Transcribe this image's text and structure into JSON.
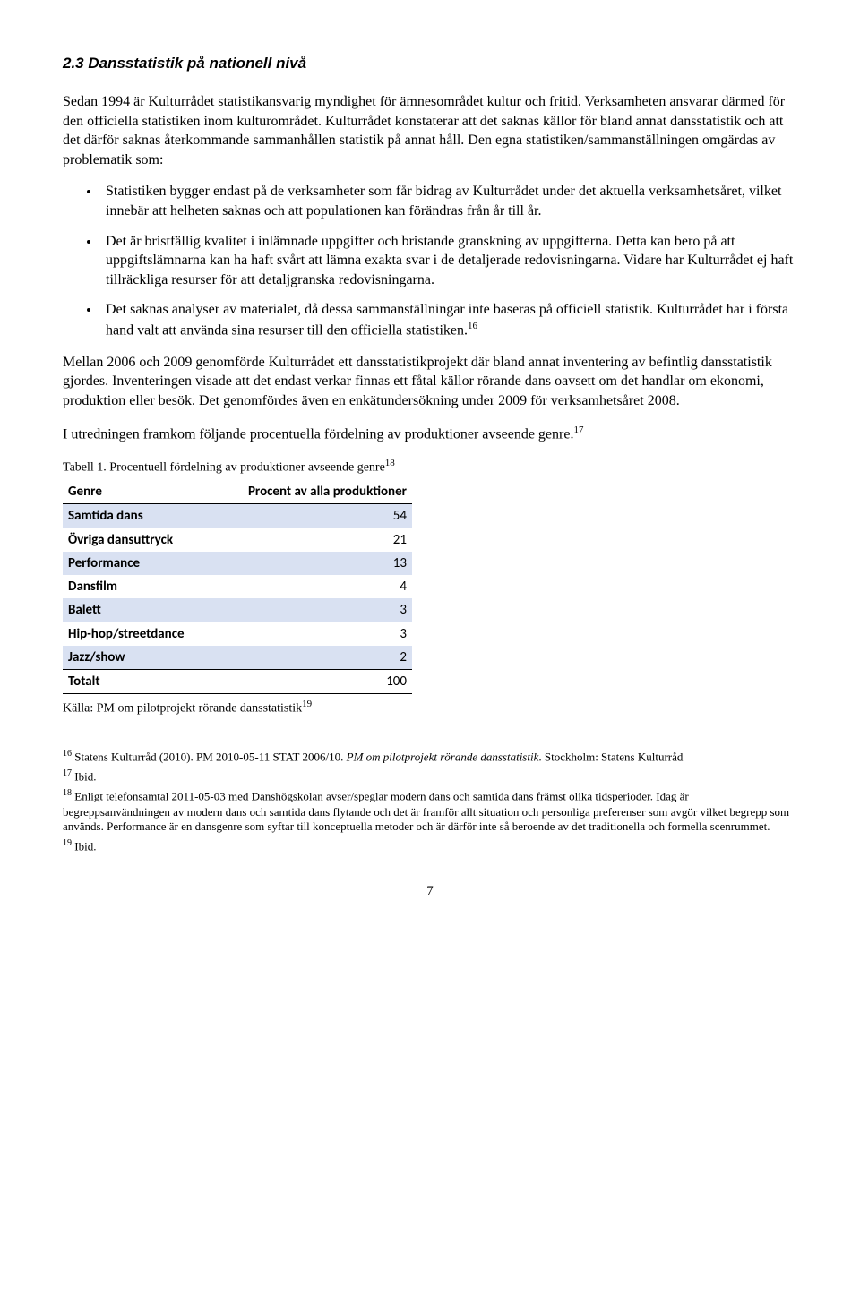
{
  "heading": "2.3 Dansstatistik på nationell nivå",
  "para1": "Sedan 1994 är Kulturrådet statistikansvarig myndighet för ämnesområdet kultur och fritid. Verksamheten ansvarar därmed för den officiella statistiken inom kulturområdet. Kulturrådet konstaterar att det saknas källor för bland annat dansstatistik och att det därför saknas återkommande sammanhållen statistik på annat håll. Den egna statistiken/sammanställningen omgärdas av problematik som:",
  "bullets": [
    "Statistiken bygger endast på de verksamheter som får bidrag av Kulturrådet under det aktuella verksamhetsåret, vilket innebär att helheten saknas och att populationen kan förändras från år till år.",
    "Det är bristfällig kvalitet i inlämnade uppgifter och bristande granskning av uppgifterna. Detta kan bero på att uppgiftslämnarna kan ha haft svårt att lämna exakta svar i de detaljerade redovisningarna. Vidare har Kulturrådet ej haft tillräckliga resurser för att detaljgranska redovisningarna.",
    "Det saknas analyser av materialet, då dessa sammanställningar inte baseras på officiell statistik. Kulturrådet har i första hand valt att använda sina resurser till den officiella statistiken."
  ],
  "bullet3_sup": "16",
  "para2": "Mellan 2006 och 2009 genomförde Kulturrådet ett dansstatistikprojekt där bland annat inventering av befintlig dansstatistik gjordes. Inventeringen visade att det endast verkar finnas ett fåtal källor rörande dans oavsett om det handlar om ekonomi, produktion eller besök. Det genomfördes även en enkätundersökning under 2009 för verksamhetsåret 2008.",
  "para3": "I utredningen framkom följande procentuella fördelning av produktioner avseende genre.",
  "para3_sup": "17",
  "table_caption": "Tabell 1. Procentuell fördelning av produktioner avseende genre",
  "table_caption_sup": "18",
  "table": {
    "col1": "Genre",
    "col2": "Procent av alla produktioner",
    "rows": [
      {
        "label": "Samtida dans",
        "value": "54",
        "band": true
      },
      {
        "label": "Övriga dansuttryck",
        "value": "21",
        "band": false
      },
      {
        "label": "Performance",
        "value": "13",
        "band": true
      },
      {
        "label": "Dansfilm",
        "value": "4",
        "band": false
      },
      {
        "label": "Balett",
        "value": "3",
        "band": true
      },
      {
        "label": "Hip-hop/streetdance",
        "value": "3",
        "band": false
      },
      {
        "label": "Jazz/show",
        "value": "2",
        "band": true
      }
    ],
    "total_label": "Totalt",
    "total_value": "100"
  },
  "source": "Källa: PM om pilotprojekt rörande dansstatistik",
  "source_sup": "19",
  "footnotes": {
    "f16_num": "16",
    "f16_a": " Statens Kulturråd (2010). PM 2010-05-11 STAT 2006/10. ",
    "f16_b": "PM om pilotprojekt rörande dansstatistik",
    "f16_c": ". Stockholm: Statens Kulturråd",
    "f17_num": "17",
    "f17": " Ibid.",
    "f18_num": "18",
    "f18": " Enligt telefonsamtal 2011-05-03 med Danshögskolan avser/speglar modern dans och samtida dans främst olika tidsperioder. Idag är begreppsanvändningen av modern dans och samtida dans flytande och det är framför allt situation och personliga preferenser som avgör vilket begrepp som används. Performance är en dansgenre som syftar till konceptuella metoder och är därför inte så beroende av det traditionella och formella scenrummet.",
    "f19_num": "19",
    "f19": " Ibid."
  },
  "pagenum": "7"
}
